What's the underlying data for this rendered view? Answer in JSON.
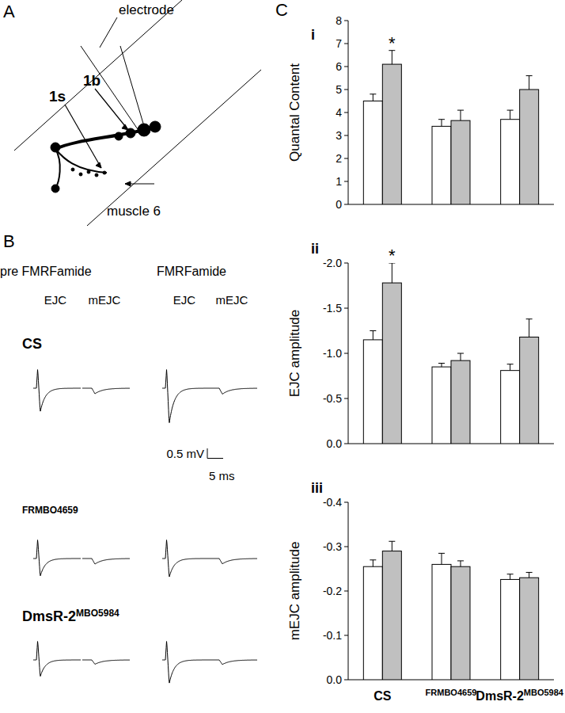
{
  "panel_labels": {
    "a": "A",
    "b": "B",
    "c": "C"
  },
  "diagram": {
    "electrode": "electrode",
    "bouton_1b": "1b",
    "bouton_1s": "1s",
    "muscle": "muscle 6"
  },
  "traces": {
    "conditions": [
      "pre FMRFamide",
      "FMRFamide"
    ],
    "columns": [
      "EJC",
      "mEJC"
    ],
    "genotypes": [
      {
        "label": "CS",
        "peaks": [
          [
            -1.2,
            -0.28
          ],
          [
            -1.8,
            -0.3
          ]
        ]
      },
      {
        "label": "FRMBO4659",
        "peaks": [
          [
            -0.9,
            -0.28
          ],
          [
            -0.95,
            -0.27
          ]
        ]
      },
      {
        "label": "DmsR-2MBO5984",
        "peaks": [
          [
            -0.85,
            -0.22
          ],
          [
            -1.2,
            -0.23
          ]
        ]
      }
    ],
    "scale_bar": {
      "amplitude": 0.5,
      "amplitude_label": "0.5 mV",
      "time": 5,
      "time_label": "5 ms"
    }
  },
  "chart_data": [
    {
      "type": "bar",
      "title": "i",
      "y_label": "Quantal Content",
      "categories": [
        "CS",
        "FRMBO4659",
        "DmsR-2MBO5984"
      ],
      "series": [
        {
          "color": "#ffffff",
          "values": [
            4.5,
            3.4,
            3.7
          ],
          "errors": [
            0.3,
            0.3,
            0.4
          ]
        },
        {
          "color": "#c0c0c0",
          "values": [
            6.1,
            3.65,
            5.0
          ],
          "errors": [
            0.6,
            0.45,
            0.6
          ]
        }
      ],
      "ylim": [
        0,
        8
      ],
      "yticks": [
        0,
        1,
        2,
        3,
        4,
        5,
        6,
        7,
        8
      ],
      "tick_labels": "y",
      "annotations": [
        {
          "text": "*",
          "series": 1,
          "index": 0
        }
      ]
    },
    {
      "type": "bar",
      "title": "ii",
      "y_label": "EJC amplitude",
      "categories": [
        "CS",
        "FRMBO4659",
        "DmsR-2MBO5984"
      ],
      "series": [
        {
          "color": "#ffffff",
          "values": [
            -1.15,
            -0.85,
            -0.81
          ],
          "errors": [
            0.1,
            0.04,
            0.07
          ]
        },
        {
          "color": "#c0c0c0",
          "values": [
            -1.78,
            -0.92,
            -1.18
          ],
          "errors": [
            0.22,
            0.08,
            0.2
          ]
        }
      ],
      "ylim": [
        0,
        -2.0
      ],
      "yticks": [
        {
          "value": 0,
          "label": "0.0"
        },
        -0.5,
        {
          "value": -1.0,
          "label": "-1.0"
        },
        -1.5,
        {
          "value": -2.0,
          "label": "-2.0"
        }
      ],
      "tick_labels": "y",
      "annotations": [
        {
          "text": "*",
          "series": 1,
          "index": 0
        }
      ]
    },
    {
      "type": "bar",
      "title": "iii",
      "y_label": "mEJC amplitude",
      "categories": [
        "CS",
        "FRMBO4659",
        "DmsR-2MBO5984"
      ],
      "series": [
        {
          "color": "#ffffff",
          "values": [
            -0.255,
            -0.26,
            -0.226
          ],
          "errors": [
            0.015,
            0.025,
            0.012
          ]
        },
        {
          "color": "#c0c0c0",
          "values": [
            -0.29,
            -0.255,
            -0.23
          ],
          "errors": [
            0.022,
            0.013,
            0.012
          ]
        }
      ],
      "ylim": [
        0,
        -0.4
      ],
      "yticks": [
        {
          "value": 0,
          "label": "0.0"
        },
        -0.1,
        -0.2,
        -0.3,
        -0.4
      ]
    }
  ]
}
